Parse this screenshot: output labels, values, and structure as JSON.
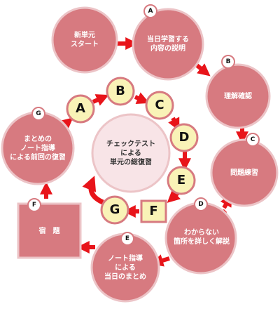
{
  "outer_steps": {
    "start": "新単元\nスタート",
    "a": "当日学習する\n内容の説明",
    "b": "理解確認",
    "c": "問題練習",
    "d": "わからない\n箇所を詳しく解説",
    "e": "ノート指導\nによる\n当日のまとめ",
    "f": "宿　題",
    "g": "まとめの\nノート指導\nによる前回の復習"
  },
  "step_letters": {
    "a": "A",
    "b": "B",
    "c": "C",
    "d": "D",
    "e": "E",
    "f": "F",
    "g": "G"
  },
  "center_text": "チェックテスト\nによる\n単元の総復習",
  "colors": {
    "circle_fill": "#d77a80",
    "circle_stroke": "#ecc4c7",
    "center_fill": "#f8e4e7",
    "bubble_fill": "#f9f3b7",
    "arrow": "#e8141a"
  }
}
